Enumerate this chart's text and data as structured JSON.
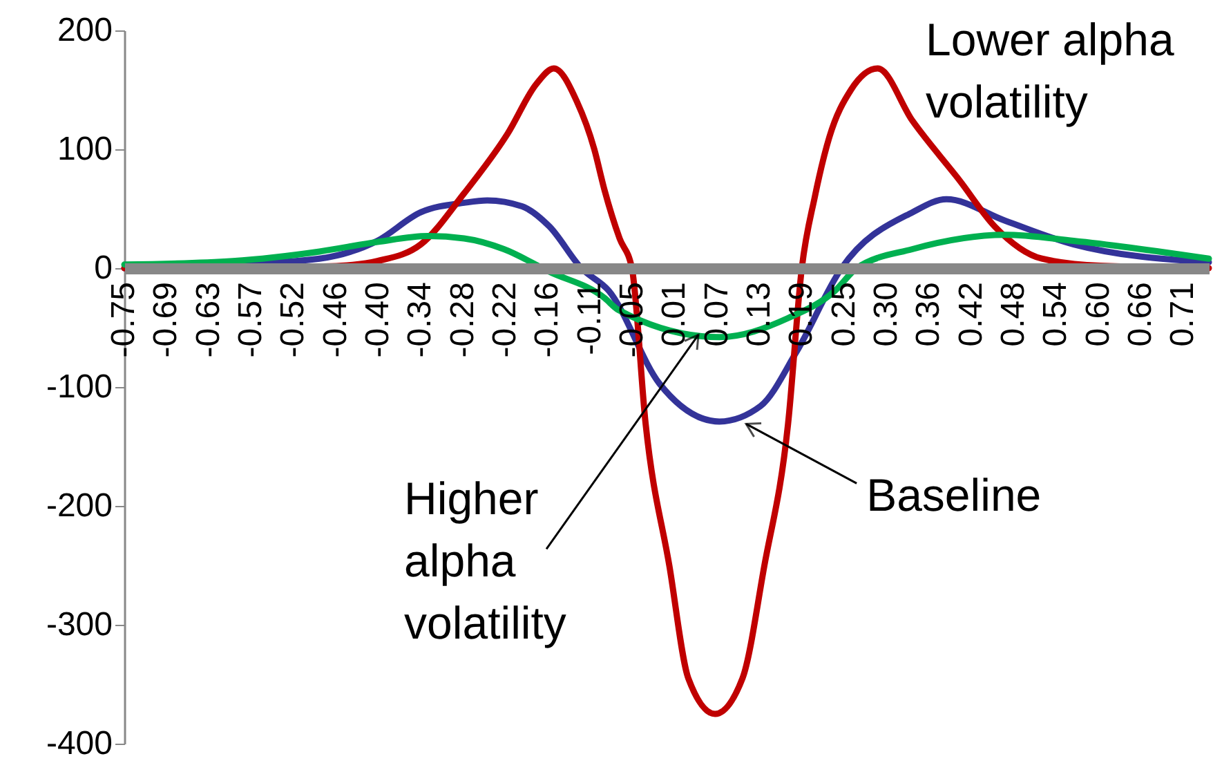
{
  "chart_data": {
    "type": "line",
    "xlim": [
      -0.75,
      0.75
    ],
    "ylim": [
      -400,
      200
    ],
    "xticks": [
      {
        "value": -0.75,
        "label": "-0.75"
      },
      {
        "value": -0.6914,
        "label": "-0.69"
      },
      {
        "value": -0.6328,
        "label": "-0.63"
      },
      {
        "value": -0.5742,
        "label": "-0.57"
      },
      {
        "value": -0.5156,
        "label": "-0.52"
      },
      {
        "value": -0.457,
        "label": "-0.46"
      },
      {
        "value": -0.3984,
        "label": "-0.40"
      },
      {
        "value": -0.3398,
        "label": "-0.34"
      },
      {
        "value": -0.2813,
        "label": "-0.28"
      },
      {
        "value": -0.2227,
        "label": "-0.22"
      },
      {
        "value": -0.1641,
        "label": "-0.16"
      },
      {
        "value": -0.1055,
        "label": "-0.11"
      },
      {
        "value": -0.0469,
        "label": "-0.05"
      },
      {
        "value": 0.0117,
        "label": "0.01"
      },
      {
        "value": 0.0703,
        "label": "0.07"
      },
      {
        "value": 0.1289,
        "label": "0.13"
      },
      {
        "value": 0.1875,
        "label": "0.19"
      },
      {
        "value": 0.2461,
        "label": "0.25"
      },
      {
        "value": 0.3047,
        "label": "0.30"
      },
      {
        "value": 0.3633,
        "label": "0.36"
      },
      {
        "value": 0.4219,
        "label": "0.42"
      },
      {
        "value": 0.4805,
        "label": "0.48"
      },
      {
        "value": 0.5391,
        "label": "0.54"
      },
      {
        "value": 0.5977,
        "label": "0.60"
      },
      {
        "value": 0.6563,
        "label": "0.66"
      },
      {
        "value": 0.7148,
        "label": "0.71"
      }
    ],
    "yticks": [
      -400,
      -300,
      -200,
      -100,
      0,
      100,
      200
    ],
    "grid": false,
    "marker": "none",
    "line_style": "solid",
    "series": [
      {
        "color": "#333399",
        "x": [
          -0.75,
          -0.6,
          -0.48,
          -0.4,
          -0.34,
          -0.28,
          -0.248,
          -0.2,
          -0.162,
          -0.118,
          -0.08,
          -0.01,
          0.073,
          0.13,
          0.18,
          0.242,
          0.34,
          0.387,
          0.468,
          0.563,
          0.75
        ],
        "values": [
          0,
          3,
          8,
          23,
          47,
          55,
          57,
          52,
          35,
          0,
          -19,
          -97,
          -129,
          -116,
          -70,
          0,
          47,
          58,
          40,
          20,
          5
        ]
      },
      {
        "color": "#c00000",
        "x": [
          -0.75,
          -0.6,
          -0.5,
          -0.45,
          -0.4,
          -0.34,
          -0.28,
          -0.22,
          -0.18,
          -0.156,
          -0.124,
          -0.1,
          -0.086,
          -0.065,
          -0.048,
          -0.029,
          0.004,
          0.03,
          0.067,
          0.105,
          0.135,
          0.168,
          0.187,
          0.205,
          0.225,
          0.255,
          0.292,
          0.34,
          0.405,
          0.454,
          0.519,
          0.6,
          0.75
        ],
        "values": [
          0,
          0,
          1,
          2,
          6,
          20,
          63,
          113,
          155,
          168,
          140,
          100,
          66,
          25,
          0,
          -131,
          -251,
          -345,
          -375,
          -345,
          -251,
          -131,
          0,
          60,
          110,
          150,
          168,
          124,
          74,
          35,
          8,
          2,
          0
        ]
      },
      {
        "color": "#00b050",
        "x": [
          -0.75,
          -0.6,
          -0.48,
          -0.4,
          -0.33,
          -0.28,
          -0.225,
          -0.162,
          -0.086,
          -0.067,
          0.073,
          0.168,
          0.233,
          0.263,
          0.34,
          0.468,
          0.563,
          0.75
        ],
        "values": [
          3,
          6,
          14,
          22,
          27,
          25,
          16,
          -3,
          -25,
          -35,
          -58,
          -42,
          -19,
          0,
          16,
          28,
          23,
          8
        ]
      }
    ],
    "annotations": [
      {
        "text": "Higher alpha volatility",
        "x": 0.044,
        "y": -56
      },
      {
        "text": "Baseline",
        "x": 0.11,
        "y": -131
      },
      "Lower alpha volatility"
    ]
  }
}
